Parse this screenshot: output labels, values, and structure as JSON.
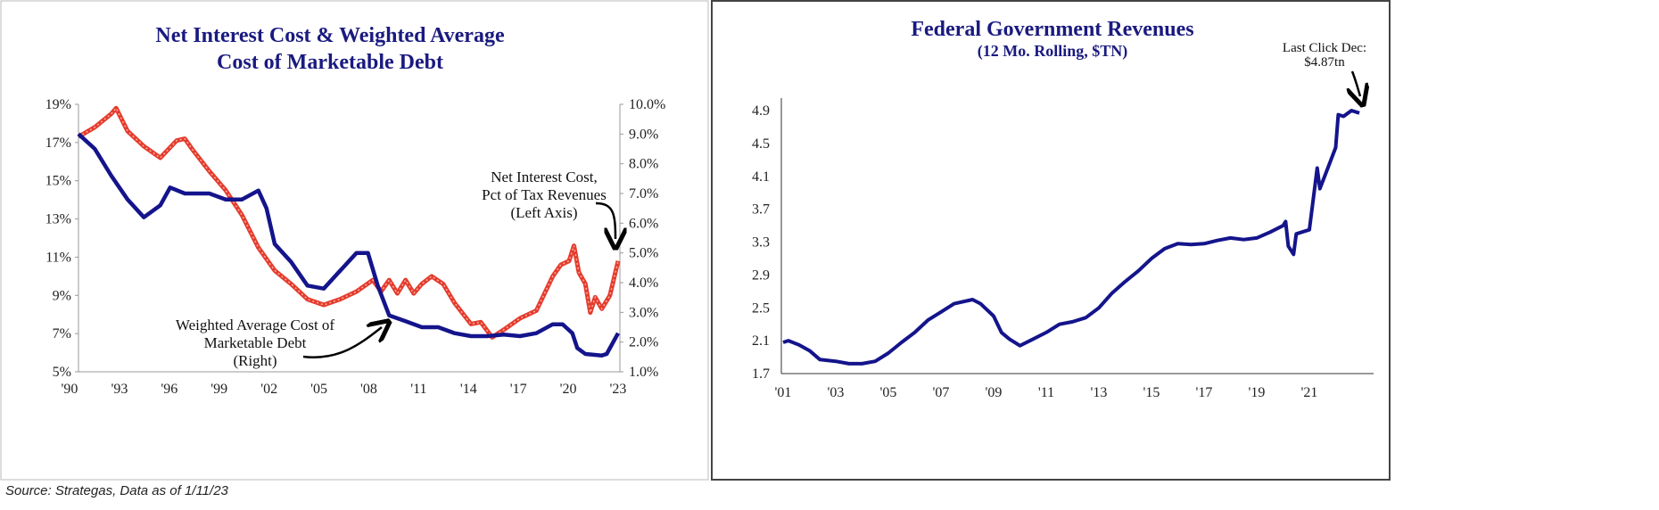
{
  "source_note": "Source: Strategas, Data as of 1/11/23",
  "chart_data": [
    {
      "type": "line",
      "title": "Net Interest Cost & Weighted Average",
      "title_line2": "Cost of Marketable Debt",
      "x_ticks": [
        "'90",
        "'93",
        "'96",
        "'99",
        "'02",
        "'05",
        "'08",
        "'11",
        "'14",
        "'17",
        "'20",
        "'23"
      ],
      "xlim": [
        1990,
        2023
      ],
      "y_left": {
        "ticks": [
          "19%",
          "17%",
          "15%",
          "13%",
          "11%",
          "9%",
          "7%",
          "5%"
        ],
        "ylim": [
          5,
          19
        ]
      },
      "y_right": {
        "ticks": [
          "10.0%",
          "9.0%",
          "8.0%",
          "7.0%",
          "6.0%",
          "5.0%",
          "4.0%",
          "3.0%",
          "2.0%",
          "1.0%"
        ],
        "ylim": [
          1,
          10
        ]
      },
      "grid": false,
      "annotations": {
        "net_interest": [
          "Net Interest Cost,",
          "Pct of Tax Revenues",
          "(Left Axis)"
        ],
        "wac": [
          "Weighted Average Cost of",
          "Marketable Debt",
          "(Right)"
        ]
      },
      "series": [
        {
          "axis": "left",
          "color": "#e53b2c",
          "x": [
            1990,
            1991,
            1992,
            1992.3,
            1993,
            1994,
            1995,
            1996,
            1996.5,
            1997,
            1998,
            1999,
            2000,
            2001,
            2002,
            2003,
            2004,
            2005,
            2006,
            2007,
            2008,
            2008.5,
            2009,
            2009.5,
            2010,
            2010.5,
            2011,
            2011.6,
            2012.3,
            2013,
            2014,
            2014.6,
            2015.3,
            2016,
            2017,
            2018,
            2019,
            2019.5,
            2020,
            2020.3,
            2020.6,
            2021,
            2021.3,
            2021.6,
            2022,
            2022.5,
            2023
          ],
          "y": [
            17.3,
            17.8,
            18.5,
            18.8,
            17.6,
            16.8,
            16.2,
            17.1,
            17.2,
            16.6,
            15.5,
            14.5,
            13.2,
            11.5,
            10.3,
            9.6,
            8.8,
            8.5,
            8.8,
            9.2,
            9.8,
            9.2,
            9.8,
            9.1,
            9.8,
            9.1,
            9.6,
            10.0,
            9.6,
            8.6,
            7.5,
            7.6,
            6.8,
            7.2,
            7.8,
            8.2,
            10.0,
            10.6,
            10.8,
            11.6,
            10.2,
            9.6,
            8.1,
            8.9,
            8.3,
            9.0,
            10.8
          ]
        },
        {
          "axis": "right",
          "color": "#14148c",
          "x": [
            1990,
            1991,
            1992,
            1993,
            1994,
            1995,
            1995.6,
            1996.5,
            1998,
            1999,
            2000,
            2001,
            2001.5,
            2002,
            2003,
            2004,
            2005,
            2006,
            2007,
            2007.7,
            2008.3,
            2009,
            2010,
            2011,
            2012,
            2013,
            2014,
            2015,
            2016,
            2017,
            2018,
            2019,
            2019.6,
            2020.2,
            2020.5,
            2021,
            2022,
            2022.3,
            2023
          ],
          "y": [
            9.0,
            8.5,
            7.6,
            6.8,
            6.2,
            6.6,
            7.2,
            7.0,
            7.0,
            6.8,
            6.8,
            7.1,
            6.5,
            5.3,
            4.7,
            3.9,
            3.8,
            4.4,
            5.0,
            5.0,
            3.9,
            2.9,
            2.7,
            2.5,
            2.5,
            2.3,
            2.2,
            2.2,
            2.25,
            2.2,
            2.3,
            2.6,
            2.6,
            2.3,
            1.8,
            1.6,
            1.55,
            1.6,
            2.3
          ]
        }
      ]
    },
    {
      "type": "line",
      "title": "Federal Government Revenues",
      "subtitle": "(12 Mo. Rolling, $TN)",
      "x_ticks": [
        "'01",
        "'03",
        "'05",
        "'07",
        "'09",
        "'11",
        "'13",
        "'15",
        "'17",
        "'19",
        "'21"
      ],
      "xlim": [
        2001,
        2023
      ],
      "y_ticks": [
        "4.9",
        "4.5",
        "4.1",
        "3.7",
        "3.3",
        "2.9",
        "2.5",
        "2.1",
        "1.7"
      ],
      "ylim": [
        1.7,
        4.9
      ],
      "grid": false,
      "annotation": [
        "Last Click Dec:",
        "$4.87tn"
      ],
      "series": [
        {
          "color": "#14148c",
          "x": [
            2001,
            2001.2,
            2001.6,
            2002,
            2002.4,
            2003,
            2003.5,
            2004,
            2004.5,
            2005,
            2005.5,
            2006,
            2006.5,
            2007,
            2007.5,
            2008.2,
            2008.5,
            2009,
            2009.3,
            2009.6,
            2010,
            2010.5,
            2011,
            2011.5,
            2012,
            2012.5,
            2013,
            2013.5,
            2014,
            2014.5,
            2015,
            2015.5,
            2016,
            2016.5,
            2017,
            2017.5,
            2018,
            2018.5,
            2019,
            2019.5,
            2020,
            2020.1,
            2020.2,
            2020.4,
            2020.5,
            2021,
            2021.3,
            2021.4,
            2021.7,
            2022,
            2022.1,
            2022.3,
            2022.6,
            2022.9
          ],
          "y": [
            2.08,
            2.1,
            2.05,
            1.98,
            1.87,
            1.85,
            1.82,
            1.82,
            1.85,
            1.95,
            2.08,
            2.2,
            2.35,
            2.45,
            2.55,
            2.6,
            2.55,
            2.4,
            2.2,
            2.12,
            2.04,
            2.12,
            2.2,
            2.3,
            2.33,
            2.38,
            2.5,
            2.68,
            2.82,
            2.95,
            3.1,
            3.22,
            3.28,
            3.27,
            3.28,
            3.32,
            3.35,
            3.33,
            3.35,
            3.42,
            3.5,
            3.55,
            3.25,
            3.15,
            3.4,
            3.45,
            4.2,
            3.95,
            4.2,
            4.45,
            4.85,
            4.83,
            4.9,
            4.87
          ]
        }
      ]
    }
  ]
}
